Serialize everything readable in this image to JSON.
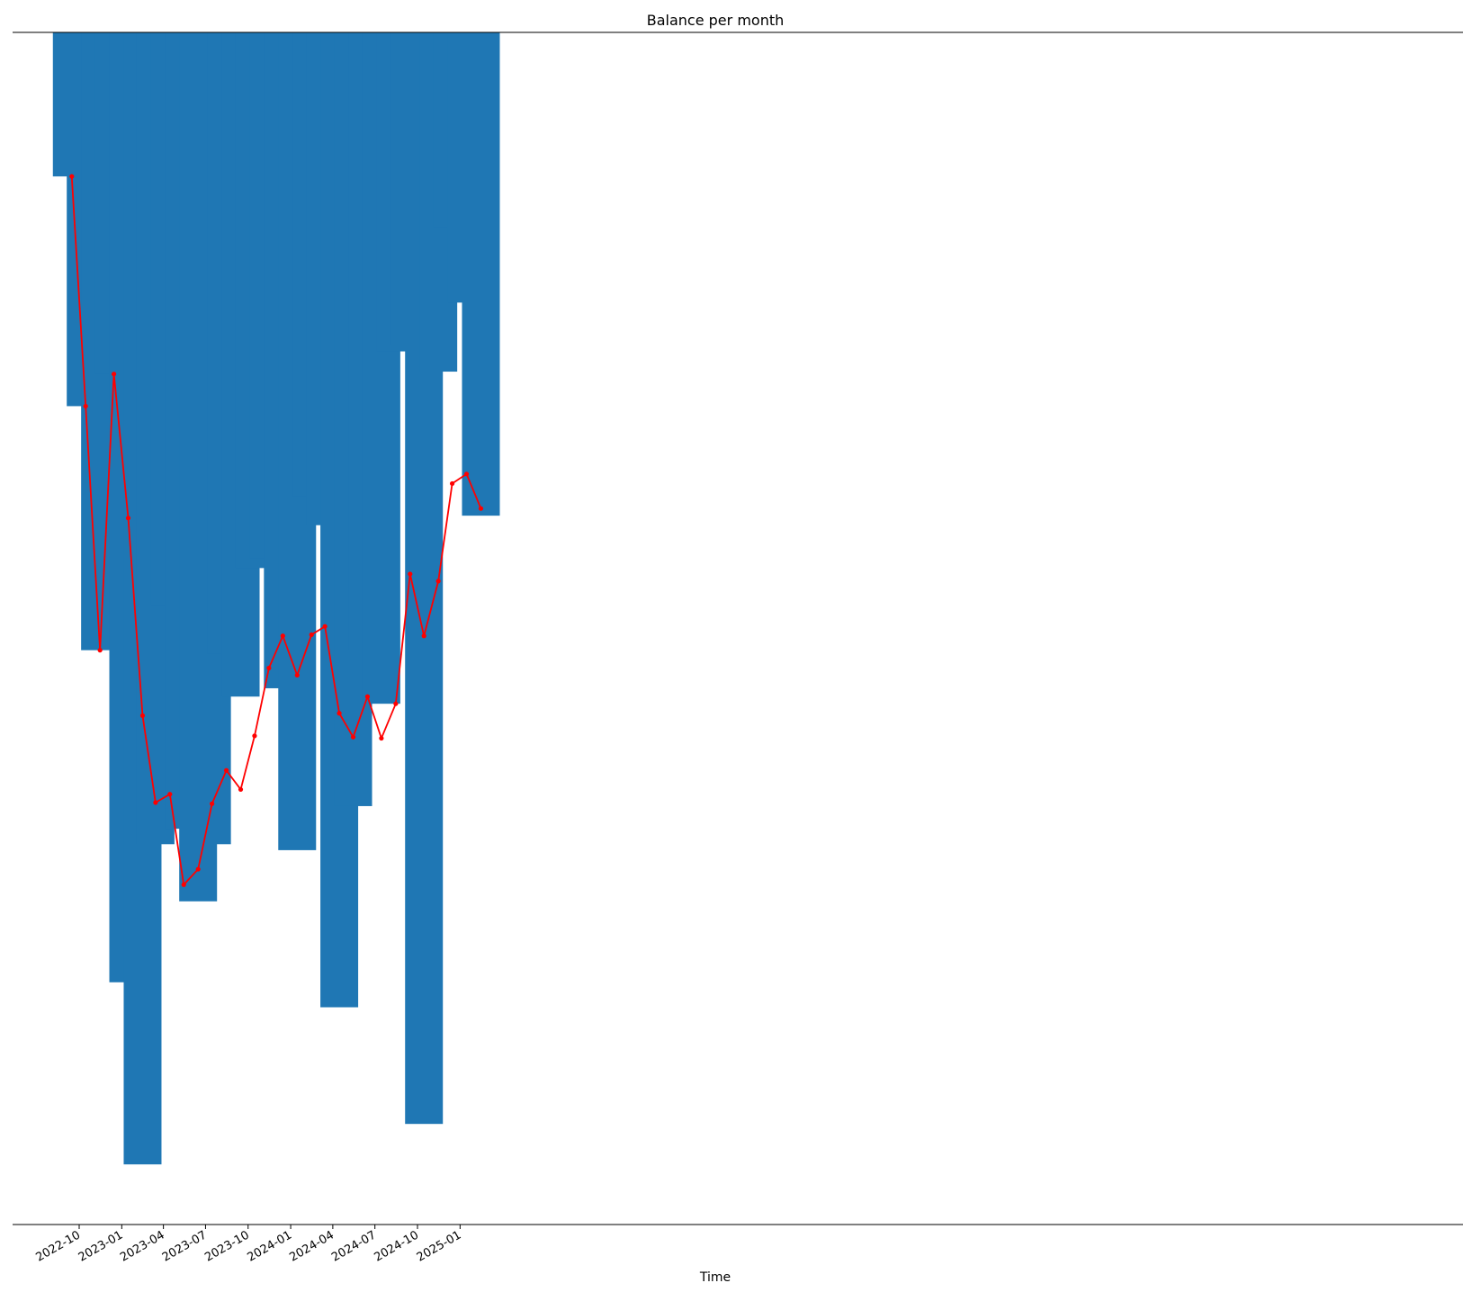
{
  "chart_data": {
    "type": "bar",
    "title": "Balance per month",
    "xlabel": "Time",
    "ylabel": "",
    "x_axis": "date",
    "x_tick_labels": [
      "2022-10",
      "2023-01",
      "2023-04",
      "2023-07",
      "2023-10",
      "2024-01",
      "2024-04",
      "2024-07",
      "2024-10",
      "2025-01"
    ],
    "y_axis_visible": false,
    "grid": false,
    "ylim": [
      -1.0,
      0.0
    ],
    "colors": {
      "bars": "#1f77b4",
      "line": "#ff0000"
    },
    "categories": [
      "2022-09",
      "2022-10",
      "2022-11",
      "2022-12",
      "2023-01",
      "2023-02",
      "2023-03",
      "2023-04",
      "2023-05",
      "2023-06",
      "2023-07",
      "2023-08",
      "2023-09",
      "2023-10",
      "2023-11",
      "2023-12",
      "2024-01",
      "2024-02",
      "2024-03",
      "2024-04",
      "2024-05",
      "2024-06",
      "2024-07",
      "2024-08",
      "2024-09",
      "2024-10",
      "2024-11",
      "2024-12",
      "2025-01",
      "2025-02"
    ],
    "series": [
      {
        "type": "bar",
        "values": [
          -0.121,
          -0.314,
          -0.519,
          -0.287,
          -0.798,
          -0.951,
          -0.682,
          -0.481,
          -0.669,
          -0.73,
          -0.682,
          -0.522,
          -0.558,
          -0.45,
          -0.442,
          -0.551,
          -0.687,
          -0.39,
          -0.414,
          -0.819,
          -0.65,
          -0.519,
          -0.564,
          -0.268,
          -0.263,
          -0.917,
          -0.285,
          -0.164,
          -0.227,
          -0.406
        ]
      },
      {
        "type": "line",
        "values": [
          -0.121,
          -0.314,
          -0.519,
          -0.287,
          -0.408,
          -0.574,
          -0.647,
          -0.64,
          -0.716,
          -0.703,
          -0.648,
          -0.62,
          -0.636,
          -0.591,
          -0.534,
          -0.507,
          -0.54,
          -0.506,
          -0.499,
          -0.572,
          -0.592,
          -0.558,
          -0.593,
          -0.564,
          -0.455,
          -0.507,
          -0.461,
          -0.379,
          -0.371,
          -0.4
        ]
      }
    ]
  }
}
